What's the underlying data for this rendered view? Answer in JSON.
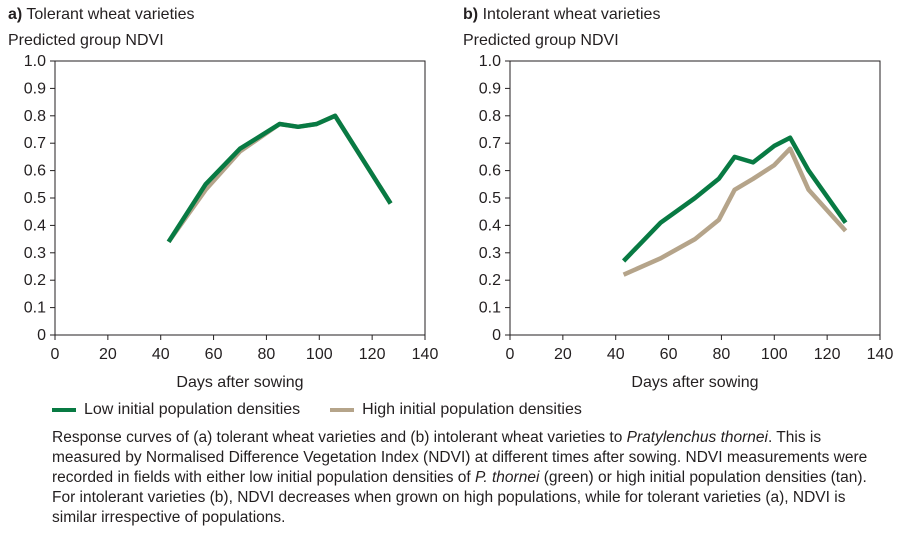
{
  "chart_data": [
    {
      "type": "line",
      "panel_letter": "a)",
      "title": "Tolerant wheat varieties",
      "ylabel": "Predicted group NDVI",
      "xlabel": "Days after sowing",
      "xlim": [
        0,
        140
      ],
      "ylim": [
        0,
        1.0
      ],
      "xticks": [
        "0",
        "20",
        "40",
        "60",
        "80",
        "100",
        "120",
        "140"
      ],
      "yticks": [
        "0",
        "0.1",
        "0.2",
        "0.3",
        "0.4",
        "0.5",
        "0.6",
        "0.7",
        "0.8",
        "0.9",
        "1.0"
      ],
      "grid": false,
      "series": [
        {
          "name": "High initial population densities",
          "color": "#b5a48a",
          "x": [
            43,
            57,
            70,
            85,
            92,
            99,
            106,
            127
          ],
          "y": [
            0.34,
            0.53,
            0.67,
            0.77,
            0.76,
            0.77,
            0.8,
            0.48
          ]
        },
        {
          "name": "Low initial population densities",
          "color": "#087a43",
          "x": [
            43,
            57,
            70,
            85,
            92,
            99,
            106,
            127
          ],
          "y": [
            0.34,
            0.55,
            0.68,
            0.77,
            0.76,
            0.77,
            0.8,
            0.48
          ]
        }
      ]
    },
    {
      "type": "line",
      "panel_letter": "b)",
      "title": "Intolerant wheat varieties",
      "ylabel": "Predicted group NDVI",
      "xlabel": "Days after sowing",
      "xlim": [
        0,
        140
      ],
      "ylim": [
        0,
        1.0
      ],
      "xticks": [
        "0",
        "20",
        "40",
        "60",
        "80",
        "100",
        "120",
        "140"
      ],
      "yticks": [
        "0",
        "0.1",
        "0.2",
        "0.3",
        "0.4",
        "0.5",
        "0.6",
        "0.7",
        "0.8",
        "0.9",
        "1.0"
      ],
      "grid": false,
      "series": [
        {
          "name": "High initial population densities",
          "color": "#b5a48a",
          "x": [
            43,
            57,
            70,
            79,
            85,
            92,
            100,
            106,
            113,
            127
          ],
          "y": [
            0.22,
            0.28,
            0.35,
            0.42,
            0.53,
            0.57,
            0.62,
            0.68,
            0.53,
            0.38
          ]
        },
        {
          "name": "Low initial population densities",
          "color": "#087a43",
          "x": [
            43,
            57,
            70,
            79,
            85,
            92,
            100,
            106,
            113,
            127
          ],
          "y": [
            0.27,
            0.41,
            0.5,
            0.57,
            0.65,
            0.63,
            0.69,
            0.72,
            0.6,
            0.41
          ]
        }
      ]
    }
  ],
  "legend": {
    "low_label": "Low initial population densities",
    "low_color": "#087a43",
    "high_label": "High initial population densities",
    "high_color": "#b5a48a"
  },
  "caption": {
    "part1": "Response curves of (a) tolerant wheat varieties and (b) intolerant wheat varieties to ",
    "italic1": "Pratylenchus thornei",
    "part2": ". This is measured by Normalised Difference Vegetation Index (NDVI) at different times after sowing. NDVI measurements were recorded in fields with either low initial population densities of ",
    "italic2": "P. thornei",
    "part3": " (green) or high initial population densities (tan). For intolerant varieties (b), NDVI decreases when grown on high populations, while for tolerant varieties (a), NDVI is similar irrespective of populations."
  }
}
